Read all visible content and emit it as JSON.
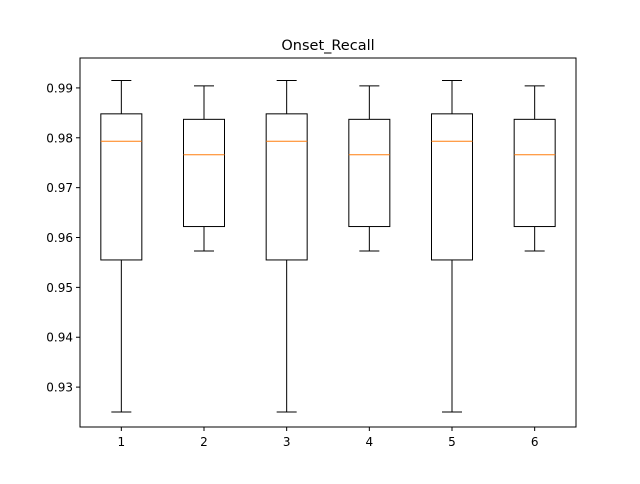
{
  "chart_data": {
    "type": "box",
    "title": "Onset_Recall",
    "xlabel": "",
    "ylabel": "",
    "categories": [
      "1",
      "2",
      "3",
      "4",
      "5",
      "6"
    ],
    "ylim": [
      0.922,
      0.996
    ],
    "yticks": [
      0.93,
      0.94,
      0.95,
      0.96,
      0.97,
      0.98,
      0.99
    ],
    "ytick_labels": [
      "0.93",
      "0.94",
      "0.95",
      "0.96",
      "0.97",
      "0.98",
      "0.99"
    ],
    "grid": false,
    "boxes": [
      {
        "category": "1",
        "whisker_low": 0.925,
        "q1": 0.9555,
        "median": 0.9793,
        "q3": 0.9848,
        "whisker_high": 0.9915
      },
      {
        "category": "2",
        "whisker_low": 0.9573,
        "q1": 0.9622,
        "median": 0.9766,
        "q3": 0.9837,
        "whisker_high": 0.9904
      },
      {
        "category": "3",
        "whisker_low": 0.925,
        "q1": 0.9555,
        "median": 0.9793,
        "q3": 0.9848,
        "whisker_high": 0.9915
      },
      {
        "category": "4",
        "whisker_low": 0.9573,
        "q1": 0.9622,
        "median": 0.9766,
        "q3": 0.9837,
        "whisker_high": 0.9904
      },
      {
        "category": "5",
        "whisker_low": 0.925,
        "q1": 0.9555,
        "median": 0.9793,
        "q3": 0.9848,
        "whisker_high": 0.9915
      },
      {
        "category": "6",
        "whisker_low": 0.9573,
        "q1": 0.9622,
        "median": 0.9766,
        "q3": 0.9837,
        "whisker_high": 0.9904
      }
    ],
    "colors": {
      "box": "#000000",
      "median": "#ff7f0e",
      "axes": "#000000"
    }
  }
}
